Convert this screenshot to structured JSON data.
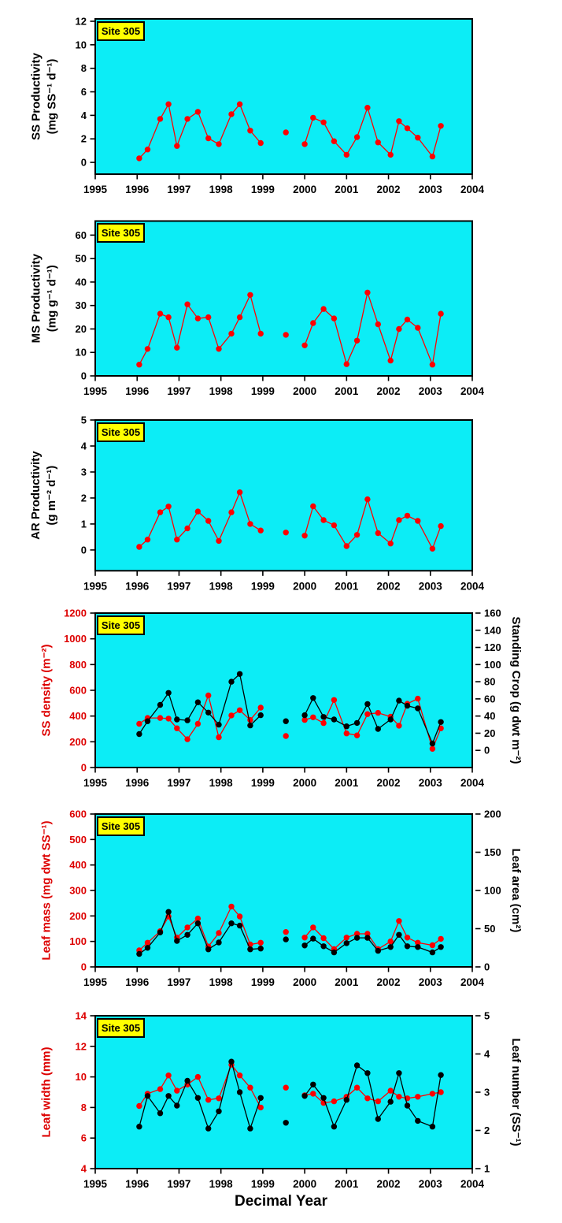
{
  "site_label": "Site 305",
  "colors": {
    "plot_bg": "#0CEDF6",
    "red": "#FF0000",
    "red_text": "#DD0000",
    "black": "#000000",
    "site_bg": "#FFFF00"
  },
  "x_axis": {
    "label": "Decimal Year",
    "min": 1995,
    "max": 2004,
    "ticks": [
      1995,
      1996,
      1997,
      1998,
      1999,
      2000,
      2001,
      2002,
      2003,
      2004
    ]
  },
  "sample_x": [
    1996.05,
    1996.25,
    1996.55,
    1996.75,
    1996.95,
    1997.2,
    1997.45,
    1997.7,
    1997.95,
    1998.25,
    1998.45,
    1998.7,
    1998.95,
    1999.55,
    2000.0,
    2000.2,
    2000.45,
    2000.7,
    2001.0,
    2001.25,
    2001.5,
    2001.75,
    2002.05,
    2002.25,
    2002.45,
    2002.7,
    2003.05,
    2003.25
  ],
  "connectivity": {
    "segments": [
      [
        0,
        12
      ],
      [
        14,
        27
      ]
    ],
    "isolated_points": [
      13
    ]
  },
  "chart_data": [
    {
      "name": "ss-productivity",
      "type": "line",
      "left_axis": {
        "label_lines": [
          "SS Productivity",
          "(mg SS⁻¹ d⁻¹)"
        ],
        "color_key": "black",
        "min": -1,
        "max": 12.2,
        "ticks": [
          0,
          2,
          4,
          6,
          8,
          10,
          12
        ]
      },
      "right_axis": null,
      "series": [
        {
          "key": "ss-productivity",
          "name": "SS Productivity",
          "axis": "left",
          "color_key": "red",
          "values": [
            0.35,
            1.1,
            3.7,
            4.95,
            1.4,
            3.7,
            4.3,
            2.05,
            1.55,
            4.1,
            4.95,
            2.7,
            1.65,
            2.55,
            1.55,
            3.8,
            3.4,
            1.8,
            0.65,
            2.15,
            4.65,
            1.7,
            0.65,
            3.5,
            2.9,
            2.1,
            0.5,
            3.1
          ]
        }
      ]
    },
    {
      "name": "ms-productivity",
      "type": "line",
      "left_axis": {
        "label_lines": [
          "MS Productivity",
          "(mg g⁻¹ d⁻¹)"
        ],
        "color_key": "black",
        "min": 0,
        "max": 66,
        "ticks": [
          0,
          10,
          20,
          30,
          40,
          50,
          60
        ]
      },
      "right_axis": null,
      "series": [
        {
          "key": "ms-productivity",
          "name": "MS Productivity",
          "axis": "left",
          "color_key": "red",
          "values": [
            4.8,
            11.5,
            26.5,
            25,
            12,
            30.5,
            24.5,
            25,
            11.5,
            18,
            25,
            34.5,
            18,
            17.5,
            13,
            22.5,
            28.5,
            24.5,
            5,
            15,
            35.5,
            22,
            6.5,
            20,
            24,
            20.5,
            4.8,
            26.5
          ]
        }
      ]
    },
    {
      "name": "ar-productivity",
      "type": "line",
      "left_axis": {
        "label_lines": [
          "AR Productivity",
          "(g m⁻² d⁻¹)"
        ],
        "color_key": "black",
        "min": -0.8,
        "max": 5,
        "ticks": [
          0,
          1,
          2,
          3,
          4,
          5
        ]
      },
      "right_axis": null,
      "series": [
        {
          "key": "ar-productivity",
          "name": "AR Productivity",
          "axis": "left",
          "color_key": "red",
          "values": [
            0.12,
            0.4,
            1.45,
            1.67,
            0.4,
            0.83,
            1.48,
            1.12,
            0.35,
            1.45,
            2.22,
            1.0,
            0.75,
            0.67,
            0.55,
            1.68,
            1.15,
            0.95,
            0.15,
            0.58,
            1.95,
            0.65,
            0.25,
            1.15,
            1.32,
            1.12,
            0.05,
            0.92
          ]
        }
      ]
    },
    {
      "name": "ss-density-standing-crop",
      "type": "line",
      "left_axis": {
        "label_lines": [
          "SS density (m⁻²)"
        ],
        "color_key": "red_text",
        "min": 0,
        "max": 1200,
        "ticks": [
          0,
          200,
          400,
          600,
          800,
          1000,
          1200
        ]
      },
      "right_axis": {
        "label_lines": [
          "Standing Crop (g dwt m⁻²)"
        ],
        "color_key": "black",
        "min": -20,
        "max": 160,
        "ticks": [
          0,
          20,
          40,
          60,
          80,
          100,
          120,
          140,
          160
        ]
      },
      "series": [
        {
          "key": "ss-density",
          "name": "SS density",
          "axis": "left",
          "color_key": "red",
          "values": [
            340,
            385,
            385,
            380,
            305,
            220,
            340,
            560,
            235,
            405,
            445,
            370,
            465,
            245,
            370,
            390,
            345,
            525,
            265,
            250,
            415,
            425,
            395,
            325,
            495,
            535,
            145,
            305
          ]
        },
        {
          "key": "standing-crop",
          "name": "Standing Crop",
          "axis": "right",
          "color_key": "black",
          "values": [
            19,
            34,
            53,
            67,
            36,
            35,
            56,
            44,
            30,
            80,
            89,
            29,
            41,
            34,
            41,
            61,
            39,
            36,
            28,
            32,
            54,
            25,
            36,
            58,
            52,
            49,
            8,
            33
          ]
        }
      ]
    },
    {
      "name": "leaf-mass-leaf-area",
      "type": "line",
      "left_axis": {
        "label_lines": [
          "Leaf mass (mg dwt SS⁻¹)"
        ],
        "color_key": "red_text",
        "min": 0,
        "max": 600,
        "ticks": [
          0,
          100,
          200,
          300,
          400,
          500,
          600
        ]
      },
      "right_axis": {
        "label_lines": [
          "Leaf area (cm²)"
        ],
        "color_key": "black",
        "min": 0,
        "max": 200,
        "ticks": [
          0,
          50,
          100,
          150,
          200
        ]
      },
      "series": [
        {
          "key": "leaf-mass",
          "name": "Leaf mass",
          "axis": "left",
          "color_key": "red",
          "values": [
            65,
            95,
            140,
            198,
            115,
            155,
            190,
            80,
            133,
            237,
            198,
            88,
            95,
            137,
            115,
            155,
            113,
            70,
            115,
            130,
            130,
            70,
            100,
            180,
            115,
            95,
            85,
            110
          ]
        },
        {
          "key": "leaf-area",
          "name": "Leaf area",
          "axis": "right",
          "color_key": "black",
          "values": [
            17,
            25,
            45,
            72,
            34,
            42,
            57,
            23,
            32,
            57,
            54,
            23,
            24,
            36,
            28,
            37,
            27,
            19,
            31,
            38,
            38,
            21,
            26,
            42,
            27,
            26,
            19,
            26
          ]
        }
      ]
    },
    {
      "name": "leaf-width-leaf-number",
      "type": "line",
      "left_axis": {
        "label_lines": [
          "Leaf width (mm)"
        ],
        "color_key": "red_text",
        "min": 4,
        "max": 14,
        "ticks": [
          4,
          6,
          8,
          10,
          12,
          14
        ]
      },
      "right_axis": {
        "label_lines": [
          "Leaf number (SS⁻¹)"
        ],
        "color_key": "black",
        "min": 1,
        "max": 5,
        "ticks": [
          1,
          2,
          3,
          4,
          5
        ]
      },
      "series": [
        {
          "key": "leaf-width",
          "name": "Leaf width",
          "axis": "left",
          "color_key": "red",
          "values": [
            8.1,
            8.9,
            9.2,
            10.1,
            9.1,
            9.5,
            10.0,
            8.5,
            8.6,
            10.8,
            10.1,
            9.3,
            8.0,
            9.3,
            8.8,
            8.9,
            8.3,
            8.4,
            8.7,
            9.3,
            8.6,
            8.4,
            9.1,
            8.7,
            8.6,
            8.7,
            8.9,
            9.0
          ]
        },
        {
          "key": "leaf-number",
          "name": "Leaf number",
          "axis": "right",
          "color_key": "black",
          "values": [
            2.1,
            2.9,
            2.45,
            2.9,
            2.65,
            3.3,
            2.85,
            2.05,
            2.5,
            3.8,
            3.0,
            2.05,
            2.85,
            2.2,
            2.9,
            3.2,
            2.85,
            2.1,
            2.8,
            3.7,
            3.5,
            2.3,
            2.75,
            3.5,
            2.65,
            2.25,
            2.1,
            3.45
          ]
        }
      ]
    }
  ]
}
